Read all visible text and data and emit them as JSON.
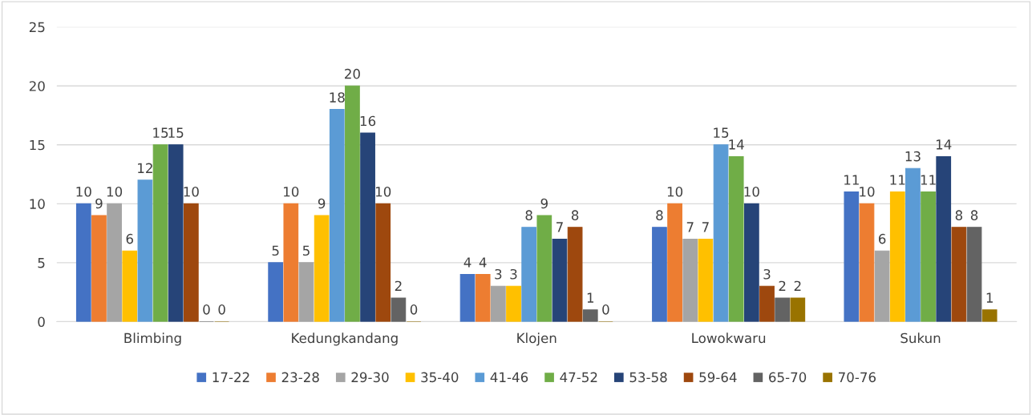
{
  "chart_data": {
    "type": "bar",
    "categories": [
      "Blimbing",
      "Kedungkandang",
      "Klojen",
      "Lowokwaru",
      "Sukun"
    ],
    "series": [
      {
        "name": "17-22",
        "color": "#4472c4",
        "values": [
          10,
          5,
          4,
          8,
          11
        ]
      },
      {
        "name": "23-28",
        "color": "#ed7d31",
        "values": [
          9,
          10,
          4,
          10,
          10
        ]
      },
      {
        "name": "29-30",
        "color": "#a5a5a5",
        "values": [
          10,
          5,
          3,
          7,
          6
        ]
      },
      {
        "name": "35-40",
        "color": "#ffc000",
        "values": [
          6,
          9,
          3,
          7,
          11
        ]
      },
      {
        "name": "41-46",
        "color": "#5b9bd5",
        "values": [
          12,
          18,
          8,
          15,
          13
        ]
      },
      {
        "name": "47-52",
        "color": "#70ad47",
        "values": [
          15,
          20,
          9,
          14,
          11
        ]
      },
      {
        "name": "53-58",
        "color": "#264478",
        "values": [
          15,
          16,
          7,
          10,
          14
        ]
      },
      {
        "name": "59-64",
        "color": "#9e480e",
        "values": [
          10,
          10,
          8,
          3,
          8
        ]
      },
      {
        "name": "65-70",
        "color": "#636363",
        "values": [
          0,
          2,
          1,
          2,
          8
        ]
      },
      {
        "name": "70-76",
        "color": "#997300",
        "values": [
          0,
          0,
          0,
          2,
          1
        ]
      }
    ],
    "ylim": [
      0,
      25
    ],
    "yticks": [
      0,
      5,
      10,
      15,
      20,
      25
    ],
    "grid": "y",
    "legend": "bottom",
    "data_labels": true
  }
}
